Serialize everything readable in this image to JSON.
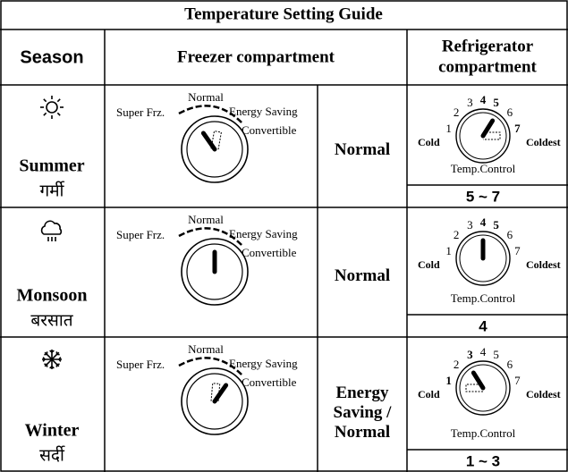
{
  "header": {
    "title": "Temperature Setting Guide",
    "season": "Season",
    "freezer": "Freezer compartment",
    "refrigerator": [
      "Refrigerator",
      "compartment"
    ]
  },
  "rows": [
    {
      "season": "Summer",
      "season_local": "गर्मी",
      "freezer_dial": {
        "super": "Super Frz.",
        "normal": "Normal",
        "energy": "Energy Saving",
        "convertible": "Convertible"
      },
      "freezer_setting": [
        "Normal"
      ],
      "fridge_dial": {
        "numbers": [
          "1",
          "2",
          "3",
          "4",
          "5",
          "6",
          "7"
        ],
        "cold": "Cold",
        "coldest": "Coldest",
        "control": "Temp.Control"
      },
      "fridge_range": "5 ~ 7"
    },
    {
      "season": "Monsoon",
      "season_local": "बरसात",
      "freezer_dial": {
        "super": "Super Frz.",
        "normal": "Normal",
        "energy": "Energy Saving",
        "convertible": "Convertible"
      },
      "freezer_setting": [
        "Normal"
      ],
      "fridge_dial": {
        "numbers": [
          "1",
          "2",
          "3",
          "4",
          "5",
          "6",
          "7"
        ],
        "cold": "Cold",
        "coldest": "Coldest",
        "control": "Temp.Control"
      },
      "fridge_range": "4"
    },
    {
      "season": "Winter",
      "season_local": "सर्दी",
      "freezer_dial": {
        "super": "Super Frz.",
        "normal": "Normal",
        "energy": "Energy Saving",
        "convertible": "Convertible"
      },
      "freezer_setting": [
        "Energy",
        "Saving /",
        "Normal"
      ],
      "fridge_dial": {
        "numbers": [
          "1",
          "2",
          "3",
          "4",
          "5",
          "6",
          "7"
        ],
        "cold": "Cold",
        "coldest": "Coldest",
        "control": "Temp.Control"
      },
      "fridge_range": "1 ~ 3"
    }
  ]
}
